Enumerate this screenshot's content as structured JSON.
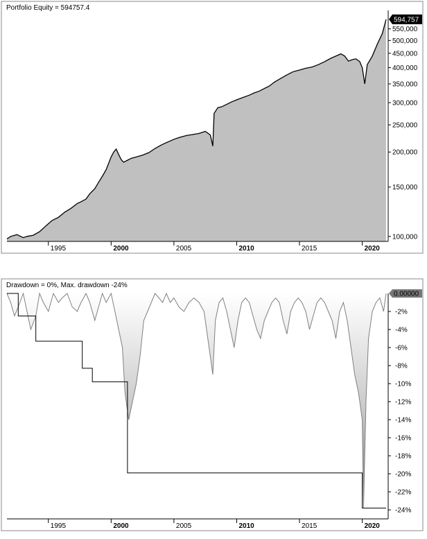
{
  "chart_data": [
    {
      "type": "area",
      "title": "Portfolio Equity = 594757.4",
      "last_value_label": "594,757",
      "y_scale": "log",
      "ylim": [
        96000,
        640000
      ],
      "xlim": [
        1991.7,
        2021.9
      ],
      "y_tick_labels": [
        "550,000",
        "500,000",
        "450,000",
        "400,000",
        "350,000",
        "300,000",
        "250,000",
        "200,000",
        "150,000",
        "100,000"
      ],
      "y_tick_values": [
        550000,
        500000,
        450000,
        400000,
        350000,
        300000,
        250000,
        200000,
        150000,
        100000
      ],
      "x_tick_labels": [
        "1995",
        "2000",
        "2005",
        "2010",
        "2015",
        "2020"
      ],
      "x_tick_values": [
        1995,
        2000,
        2005,
        2010,
        2015,
        2020
      ],
      "x_tick_bold": [
        false,
        true,
        false,
        true,
        false,
        true
      ],
      "grid": false,
      "series": [
        {
          "x": [
            1991.7,
            1992.0,
            1992.5,
            1993.0,
            1993.3,
            1993.8,
            1994.3,
            1994.8,
            1995.3,
            1995.8,
            1996.3,
            1996.8,
            1997.3,
            1997.6,
            1998.0,
            1998.3,
            1998.7,
            1999.0,
            1999.3,
            1999.6,
            2000.0,
            2000.2,
            2000.4,
            2000.6,
            2000.8,
            2001.0,
            2001.3,
            2001.6,
            2002.0,
            2002.5,
            2003.0,
            2003.5,
            2004.0,
            2004.5,
            2005.0,
            2005.5,
            2006.0,
            2006.5,
            2007.0,
            2007.5,
            2007.9,
            2008.1,
            2008.2,
            2008.5,
            2008.8,
            2009.2,
            2009.6,
            2010.0,
            2010.5,
            2011.0,
            2011.4,
            2011.8,
            2012.2,
            2012.6,
            2013.0,
            2013.5,
            2014.0,
            2014.5,
            2015.0,
            2015.5,
            2016.0,
            2016.5,
            2017.0,
            2017.5,
            2018.0,
            2018.3,
            2018.6,
            2018.9,
            2019.2,
            2019.5,
            2019.8,
            2020.0,
            2020.2,
            2020.4,
            2020.8,
            2021.2,
            2021.6,
            2021.9
          ],
          "y": [
            98000,
            100000,
            101500,
            99000,
            100000,
            101000,
            104000,
            109000,
            114000,
            117000,
            122000,
            126000,
            131000,
            133000,
            136000,
            142000,
            148000,
            156000,
            164000,
            173000,
            192000,
            200000,
            205000,
            196000,
            188000,
            184000,
            187000,
            190000,
            192000,
            195000,
            199000,
            206000,
            212000,
            217000,
            222000,
            226000,
            229000,
            231000,
            233000,
            237000,
            230000,
            210000,
            275000,
            288000,
            290000,
            296000,
            302000,
            307000,
            313000,
            319000,
            325000,
            330000,
            337000,
            344000,
            355000,
            366000,
            377000,
            387000,
            392000,
            398000,
            402000,
            410000,
            420000,
            432000,
            442000,
            448000,
            440000,
            422000,
            427000,
            430000,
            420000,
            400000,
            350000,
            410000,
            440000,
            485000,
            530000,
            594757
          ]
        }
      ]
    },
    {
      "type": "area",
      "title": "Drawdown = 0%, Max. drawdown -24%",
      "last_value_label": "0.00000",
      "ylim": [
        -25,
        0
      ],
      "xlim": [
        1991.7,
        2021.9
      ],
      "y_tick_labels": [
        "-2%",
        "-4%",
        "-6%",
        "-8%",
        "-10%",
        "-12%",
        "-14%",
        "-16%",
        "-18%",
        "-20%",
        "-22%",
        "-24%"
      ],
      "y_tick_values": [
        -2,
        -4,
        -6,
        -8,
        -10,
        -12,
        -14,
        -16,
        -18,
        -20,
        -22,
        -24
      ],
      "x_tick_labels": [
        "1995",
        "2000",
        "2005",
        "2010",
        "2015",
        "2020"
      ],
      "x_tick_values": [
        1995,
        2000,
        2005,
        2010,
        2015,
        2020
      ],
      "x_tick_bold": [
        false,
        true,
        false,
        true,
        false,
        true
      ],
      "grid": false,
      "series": [
        {
          "x": [
            1991.7,
            1992.0,
            1992.3,
            1992.6,
            1993.0,
            1993.3,
            1993.6,
            1994.0,
            1994.3,
            1994.6,
            1995.0,
            1995.4,
            1995.8,
            1996.1,
            1996.5,
            1996.9,
            1997.3,
            1997.6,
            1998.0,
            1998.3,
            1998.7,
            1999.0,
            1999.3,
            1999.6,
            2000.0,
            2000.3,
            2000.6,
            2000.9,
            2001.1,
            2001.4,
            2001.7,
            2002.0,
            2002.3,
            2002.6,
            2002.9,
            2003.2,
            2003.5,
            2003.8,
            2004.1,
            2004.4,
            2004.7,
            2005.0,
            2005.4,
            2005.8,
            2006.2,
            2006.6,
            2007.0,
            2007.4,
            2007.8,
            2008.1,
            2008.3,
            2008.6,
            2008.9,
            2009.2,
            2009.5,
            2009.8,
            2010.1,
            2010.4,
            2010.7,
            2011.0,
            2011.3,
            2011.6,
            2011.9,
            2012.2,
            2012.5,
            2012.8,
            2013.1,
            2013.4,
            2013.7,
            2014.0,
            2014.3,
            2014.6,
            2014.9,
            2015.2,
            2015.5,
            2015.8,
            2016.1,
            2016.4,
            2016.7,
            2017.0,
            2017.3,
            2017.6,
            2017.9,
            2018.2,
            2018.5,
            2018.8,
            2019.1,
            2019.4,
            2019.7,
            2020.0,
            2020.1,
            2020.3,
            2020.5,
            2020.8,
            2021.1,
            2021.4,
            2021.7,
            2021.9
          ],
          "y": [
            0,
            -1,
            -2.5,
            -1.5,
            0,
            -2,
            -4,
            -2.5,
            0,
            -1,
            -2,
            0,
            -1,
            -0.5,
            0,
            -1.5,
            -2,
            -1,
            0,
            -1,
            -3,
            -1.5,
            0,
            -1,
            0,
            -2,
            -4,
            -6,
            -11,
            -14,
            -12,
            -10,
            -7,
            -3,
            -2,
            -1,
            0,
            -0.5,
            -1,
            0,
            -1,
            -0.5,
            -1.5,
            -2,
            -1,
            -0.5,
            -1,
            -2,
            -6,
            -9,
            -3,
            -1,
            -0.5,
            -2,
            -4,
            -6,
            -3,
            -1,
            -0.5,
            -1,
            -2.5,
            -4,
            -5,
            -3,
            -2,
            -1,
            -0.5,
            -1,
            -3,
            -4.5,
            -2,
            -1,
            -0.5,
            -1,
            -2,
            -4,
            -2.5,
            -1,
            -0.5,
            -1,
            -2,
            -3,
            -5,
            -2,
            -1,
            -3,
            -6,
            -9,
            -11,
            -14,
            -23.8,
            -12,
            -5,
            -2,
            -1,
            -0.5,
            -2,
            0
          ]
        },
        {
          "name": "Max. drawdown",
          "x": [
            1991.7,
            1992.6,
            1992.6,
            1994.0,
            1994.0,
            1997.7,
            1997.7,
            1998.5,
            1998.5,
            2001.3,
            2001.3,
            2020.0,
            2020.0,
            2021.9
          ],
          "y": [
            0,
            0,
            -2.5,
            -2.5,
            -5.3,
            -5.3,
            -8.3,
            -8.3,
            -9.8,
            -9.8,
            -19.9,
            -19.9,
            -23.8,
            -23.8
          ]
        }
      ]
    }
  ]
}
